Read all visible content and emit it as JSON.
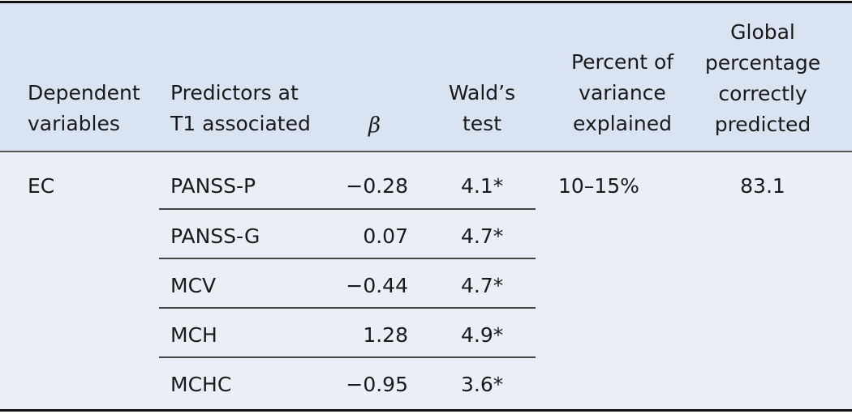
{
  "headers": {
    "dependent": "Dependent\nvariables",
    "predictors": "Predictors at\nT1 associated",
    "beta": "β",
    "wald": "Wald’s\ntest",
    "percent": "Percent of\nvariance\nexplained",
    "global": "Global\npercentage\ncorrectly\npredicted"
  },
  "body": {
    "dependent": "EC",
    "percent": "10–15%",
    "global": "83.1",
    "rows": [
      {
        "predictor": "PANSS-P",
        "beta": "−0.28",
        "wald": "4.1*"
      },
      {
        "predictor": "PANSS-G",
        "beta": "0.07",
        "wald": "4.7*"
      },
      {
        "predictor": "MCV",
        "beta": "−0.44",
        "wald": "4.7*"
      },
      {
        "predictor": "MCH",
        "beta": "1.28",
        "wald": "4.9*"
      },
      {
        "predictor": "MCHC",
        "beta": "−0.95",
        "wald": "3.6*"
      }
    ]
  }
}
